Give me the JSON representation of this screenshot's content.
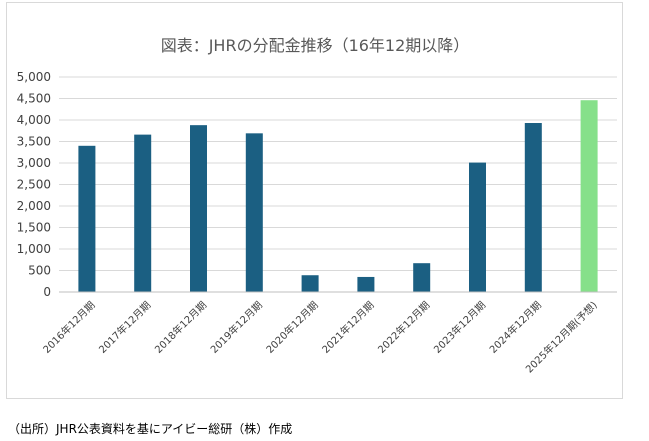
{
  "chart_data": {
    "type": "bar",
    "title": "図表：JHRの分配金推移（16年12期以降）",
    "xlabel": "",
    "ylabel": "",
    "ylim": [
      0,
      5000
    ],
    "yticks": [
      "0",
      "500",
      "1,000",
      "1,500",
      "2,000",
      "2,500",
      "3,000",
      "3,500",
      "4,000",
      "4,500",
      "5,000"
    ],
    "ytick_values": [
      0,
      500,
      1000,
      1500,
      2000,
      2500,
      3000,
      3500,
      4000,
      4500,
      5000
    ],
    "grid": true,
    "legend": "none",
    "categories": [
      "2016年12月期",
      "2017年12月期",
      "2018年12月期",
      "2019年12月期",
      "2020年12月期",
      "2021年12月期",
      "2022年12月期",
      "2023年12月期",
      "2024年12月期",
      "2025年12月期(予想)"
    ],
    "values": [
      3400,
      3660,
      3880,
      3690,
      390,
      350,
      670,
      3010,
      3930,
      4460
    ],
    "colors": {
      "actual": "#1b5f82",
      "forecast": "#86e08a"
    },
    "forecast_index": 9
  },
  "source_note": "（出所）JHR公表資料を基にアイビー総研（株）作成"
}
